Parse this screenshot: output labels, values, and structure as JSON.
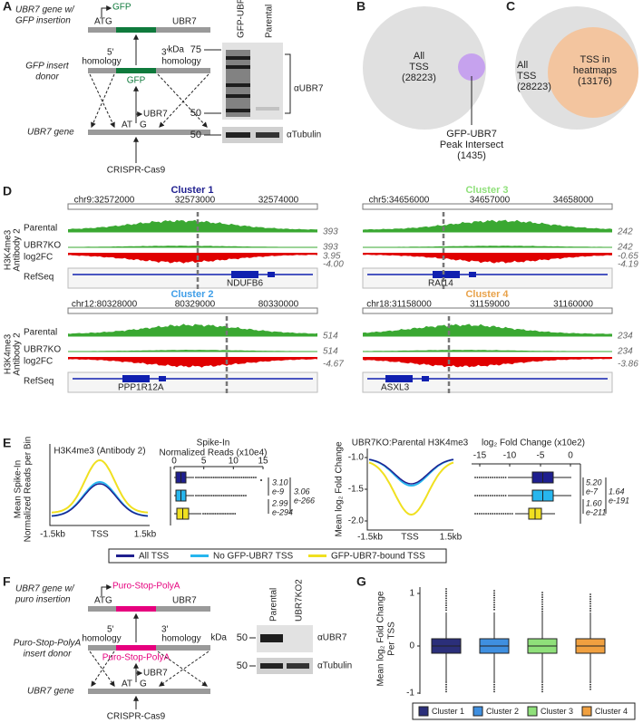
{
  "A": {
    "letter": "A",
    "tag": "GFP",
    "atg": "ATG",
    "ubr7": "UBR7",
    "gene_w": "UBR7 gene w/",
    "insertion": "GFP insertion",
    "donor_1": "GFP insert",
    "donor_2": "donor",
    "h5": "5'",
    "homology_5": "homology",
    "h3": "3'",
    "homology_3": "homology",
    "insert": "GFP",
    "ubr7_2": "UBR7",
    "at": "AT",
    "g": "G",
    "gene": "UBR7 gene",
    "crispr": "CRISPR-Cas9",
    "lanes": [
      "GFP-UBR7",
      "Parental"
    ],
    "kda": "kDa",
    "markers": [
      "75",
      "50",
      "50"
    ],
    "antibodies": [
      "αUBR7",
      "αTubulin"
    ]
  },
  "B": {
    "letter": "B",
    "all": [
      "All",
      "TSS",
      "(28223)"
    ],
    "peak": [
      "GFP-UBR7",
      "Peak Intersect",
      "(1435)"
    ]
  },
  "C": {
    "letter": "C",
    "all": [
      "All",
      "TSS",
      "(28223)"
    ],
    "heat": [
      "TSS in",
      "heatmaps",
      "(13176)"
    ]
  },
  "D": {
    "letter": "D",
    "ylabel": [
      "H3K4me3",
      "Antibody 2"
    ],
    "tracks": [
      "Parental",
      "UBR7KO",
      "log2FC",
      "RefSeq"
    ],
    "clusters": [
      {
        "name": "Cluster 1",
        "coords": [
          "chr9:32572000",
          "32573000",
          "32574000"
        ],
        "scales": [
          "393",
          "393",
          "3.95",
          "-4.00"
        ],
        "gene": "NDUFB6"
      },
      {
        "name": "Cluster 3",
        "coords": [
          "chr5:34656000",
          "34657000",
          "34658000"
        ],
        "scales": [
          "242",
          "242",
          "-0.65",
          "-4.19"
        ],
        "gene": "RAI14"
      },
      {
        "name": "Cluster 2",
        "coords": [
          "chr12:80328000",
          "80329000",
          "80330000"
        ],
        "scales": [
          "514",
          "514",
          "-4.67"
        ],
        "gene": "PPP1R12A"
      },
      {
        "name": "Cluster 4",
        "coords": [
          "chr18:31158000",
          "31159000",
          "31160000"
        ],
        "scales": [
          "234",
          "234",
          "-3.86"
        ],
        "gene": "ASXL3"
      }
    ]
  },
  "E": {
    "letter": "E",
    "profile": {
      "title": "H3K4me3 (Antibody 2)",
      "ylabel": [
        "Mean Spike-In",
        "Normalized Reads per Bin"
      ],
      "xticks": [
        "-1.5kb",
        "TSS",
        "1.5kb"
      ]
    },
    "spike": {
      "title": [
        "Spike-In",
        "Normalized Reads (x10e4)"
      ],
      "ticks": [
        "0",
        "5",
        "10",
        "15"
      ],
      "stats": [
        "3.10",
        "e-9",
        "2.99",
        "e-294",
        "3.06",
        "e-266"
      ]
    },
    "fc_profile": {
      "title": "UBR7KO:Parental H3K4me3",
      "ylabel": "Mean log₂ Fold Change",
      "yticks": [
        "-1.0",
        "-1.5",
        "-2.0"
      ],
      "xticks": [
        "-1.5kb",
        "TSS",
        "1.5kb"
      ]
    },
    "fc_box": {
      "title": "log₂ Fold Change (x10e2)",
      "ticks": [
        "-15",
        "-10",
        "-5",
        "0"
      ],
      "stats": [
        "5.20",
        "e-7",
        "1.60",
        "e-211",
        "1.64",
        "e-191"
      ]
    },
    "legend": [
      "All TSS",
      "No GFP-UBR7 TSS",
      "GFP-UBR7-bound TSS"
    ]
  },
  "F": {
    "letter": "F",
    "tag": "Puro-Stop-PolyA",
    "atg": "ATG",
    "ubr7": "UBR7",
    "gene_w": "UBR7 gene w/",
    "insertion": "puro insertion",
    "donor_1": "Puro-Stop-PolyA",
    "donor_2": "insert donor",
    "h5": "5'",
    "homology_5": "homology",
    "h3": "3'",
    "homology_3": "homology",
    "insert": "Puro-Stop-PolyA",
    "ubr7_2": "UBR7",
    "at": "AT",
    "g": "G",
    "gene": "UBR7 gene",
    "crispr": "CRISPR-Cas9",
    "lanes": [
      "Parental",
      "UBR7KO2"
    ],
    "kda": "kDa",
    "markers": [
      "50",
      "50"
    ],
    "antibodies": [
      "αUBR7",
      "αTubulin"
    ]
  },
  "G": {
    "letter": "G",
    "ylabel": [
      "Mean log₂ Fold Change",
      "Per TSS"
    ],
    "yticks": [
      "1",
      "0",
      "-1"
    ],
    "legend": [
      "Cluster 1",
      "Cluster 2",
      "Cluster 3",
      "Cluster 4"
    ]
  }
}
